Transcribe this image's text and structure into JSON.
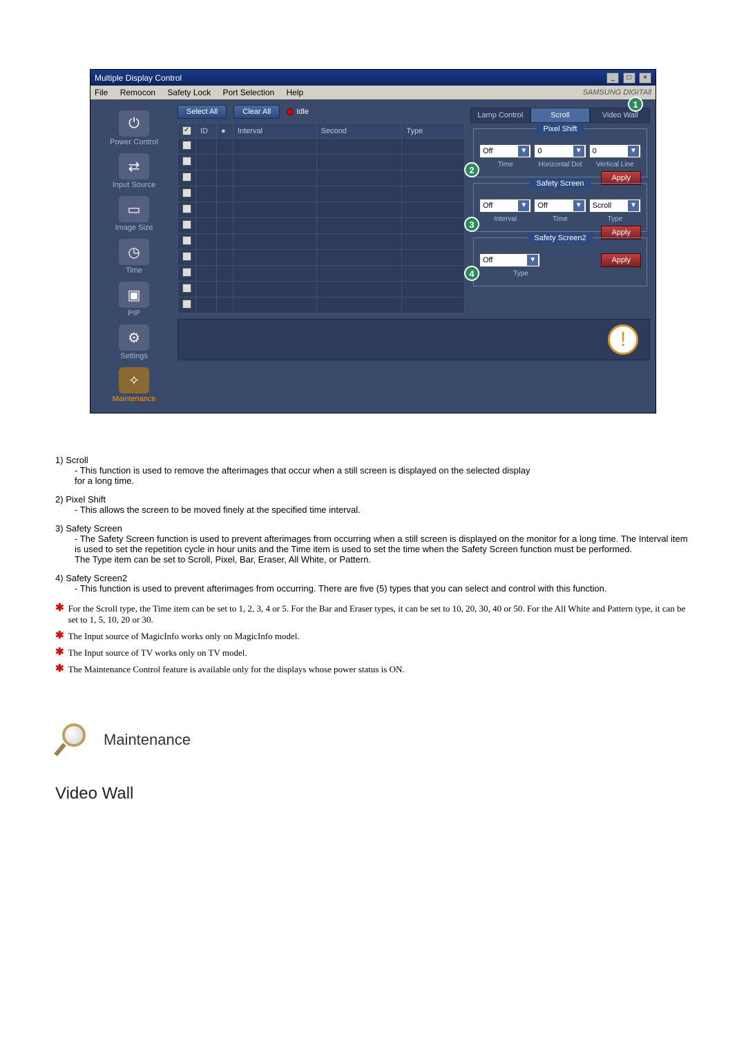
{
  "window": {
    "title": "Multiple Display Control",
    "brand": "SAMSUNG DIGITAll"
  },
  "menu": {
    "items": [
      "File",
      "Remocon",
      "Safety Lock",
      "Port Selection",
      "Help"
    ]
  },
  "sidebar": {
    "items": [
      {
        "label": "Power Control",
        "icon": "⏻"
      },
      {
        "label": "Input Source",
        "icon": "⇄"
      },
      {
        "label": "Image Size",
        "icon": "▭"
      },
      {
        "label": "Time",
        "icon": "◷"
      },
      {
        "label": "PIP",
        "icon": "▣"
      },
      {
        "label": "Settings",
        "icon": "⚙"
      },
      {
        "label": "Maintenance",
        "icon": "✧",
        "active": true
      }
    ]
  },
  "toolbar": {
    "select_all": "Select All",
    "clear_all": "Clear All",
    "idle": "Idle"
  },
  "table": {
    "headers": [
      "",
      "ID",
      "",
      "Interval",
      "Second",
      "Type"
    ],
    "rows": 11
  },
  "tabs": {
    "items": [
      "Lamp Control",
      "Scroll",
      "Video Wall"
    ],
    "active_index": 1,
    "callout": "1"
  },
  "pixel_shift": {
    "title": "Pixel Shift",
    "callout": "2",
    "time_val": "Off",
    "hdot_val": "0",
    "vline_val": "0",
    "time_label": "Time",
    "hdot_label": "Horizontal Dot",
    "vline_label": "Vertical Line",
    "apply": "Apply"
  },
  "safety_screen": {
    "title": "Safety Screen",
    "callout": "3",
    "interval_val": "Off",
    "time_val": "Off",
    "type_val": "Scroll",
    "interval_label": "Interval",
    "time_label": "Time",
    "type_label": "Type",
    "apply": "Apply"
  },
  "safety_screen2": {
    "title": "Safety Screen2",
    "callout": "4",
    "type_val": "Off",
    "type_label": "Type",
    "apply": "Apply"
  },
  "explain": {
    "items": [
      {
        "num": "1)",
        "title": "Scroll",
        "body": "- This function is used to remove the afterimages that occur when a still screen is displayed on the selected display\nfor a long time."
      },
      {
        "num": "2)",
        "title": "Pixel Shift",
        "body": "- This allows the screen to be moved finely at the specified time interval."
      },
      {
        "num": "3)",
        "title": "Safety Screen",
        "body": "- The Safety Screen function is used to prevent afterimages from occurring when a still screen is displayed on the monitor for a long time.  The Interval item is used to set the repetition cycle in hour units and the Time item is used to set the time when the Safety Screen function must be performed.\nThe Type item can be set to Scroll, Pixel, Bar, Eraser, All White, or Pattern."
      },
      {
        "num": "4)",
        "title": "Safety Screen2",
        "body": "- This function is used to prevent afterimages from occurring. There are five (5) types that you can select and control with this function."
      }
    ],
    "stars": [
      "For the Scroll type, the Time item can be set to 1, 2, 3, 4 or 5. For the Bar and Eraser types, it can be set to 10, 20, 30, 40 or 50. For the All White and Pattern type, it can be set to 1, 5, 10, 20 or 30.",
      "The Input source of MagicInfo works only on MagicInfo model.",
      "The Input source of TV works only on TV model.",
      "The Maintenance Control feature is available only for the displays whose power status is ON."
    ]
  },
  "section": {
    "title": "Maintenance",
    "subtitle": "Video Wall"
  }
}
